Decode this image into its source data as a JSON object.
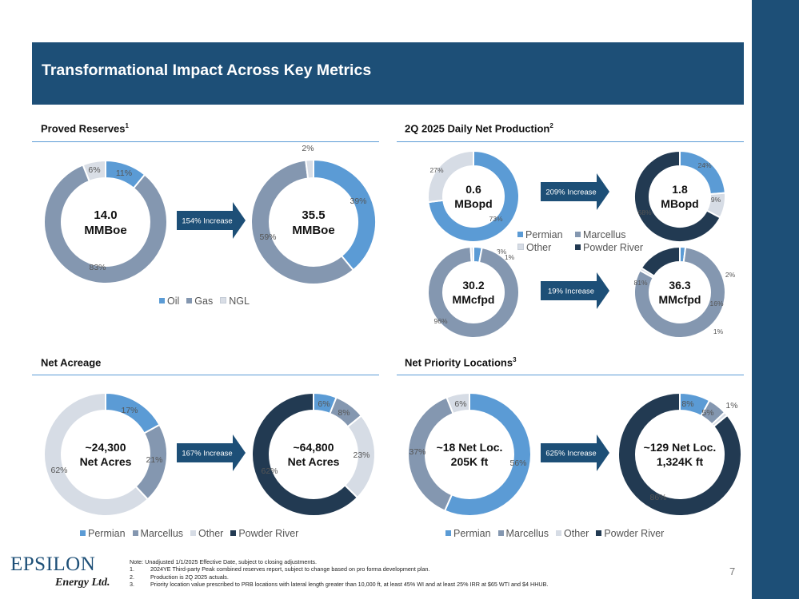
{
  "page": {
    "title": "Transformational Impact Across Key Metrics",
    "page_number": "7",
    "logo": {
      "word": "EPSILON",
      "sub": "Energy Ltd."
    }
  },
  "colors": {
    "banner": "#1d4f77",
    "oil": "#5b9bd5",
    "gas": "#8497b0",
    "ngl": "#d9dee6",
    "permian": "#5b9bd5",
    "marcellus": "#8497b0",
    "other": "#d6dce5",
    "powder_river": "#223a52",
    "arrow": "#1d4f77"
  },
  "sections": {
    "reserves": {
      "title": "Proved Reserves",
      "sup": "1"
    },
    "production": {
      "title": "2Q 2025 Daily Net Production",
      "sup": "2"
    },
    "acreage": {
      "title": "Net Acreage",
      "sup": ""
    },
    "locations": {
      "title": "Net Priority Locations",
      "sup": "3"
    }
  },
  "legends": {
    "reserves": [
      "Oil",
      "Gas",
      "NGL"
    ],
    "basins": [
      "Permian",
      "Marcellus",
      "Other",
      "Powder River"
    ]
  },
  "arrows": {
    "reserves": "154% Increase",
    "oil_production": "209% Increase",
    "gas_production": "19% Increase",
    "acreage": "167% Increase",
    "locations": "625% Increase"
  },
  "chart_data": [
    {
      "id": "reserves_before",
      "type": "pie",
      "center_label": [
        "14.0",
        "MMBoe"
      ],
      "series": [
        {
          "name": "Oil",
          "value": 11
        },
        {
          "name": "Gas",
          "value": 83
        },
        {
          "name": "NGL",
          "value": 6
        }
      ]
    },
    {
      "id": "reserves_after",
      "type": "pie",
      "center_label": [
        "35.5",
        "MMBoe"
      ],
      "series": [
        {
          "name": "Oil",
          "value": 39
        },
        {
          "name": "Gas",
          "value": 59
        },
        {
          "name": "NGL",
          "value": 2
        }
      ]
    },
    {
      "id": "oil_before",
      "type": "pie",
      "center_label": [
        "0.6",
        "MBopd"
      ],
      "series": [
        {
          "name": "Permian",
          "value": 73
        },
        {
          "name": "Other",
          "value": 27
        }
      ]
    },
    {
      "id": "oil_after",
      "type": "pie",
      "center_label": [
        "1.8",
        "MBopd"
      ],
      "series": [
        {
          "name": "Permian",
          "value": 24
        },
        {
          "name": "Other",
          "value": 9
        },
        {
          "name": "Powder River",
          "value": 68
        }
      ]
    },
    {
      "id": "gas_before",
      "type": "pie",
      "center_label": [
        "30.2",
        "MMcfpd"
      ],
      "series": [
        {
          "name": "Permian",
          "value": 3
        },
        {
          "name": "Marcellus",
          "value": 96
        },
        {
          "name": "Other",
          "value": 1
        }
      ]
    },
    {
      "id": "gas_after",
      "type": "pie",
      "center_label": [
        "36.3",
        "MMcfpd"
      ],
      "series": [
        {
          "name": "Permian",
          "value": 2
        },
        {
          "name": "Marcellus",
          "value": 81
        },
        {
          "name": "Other",
          "value": 1
        },
        {
          "name": "Powder River",
          "value": 16
        }
      ]
    },
    {
      "id": "acreage_before",
      "type": "pie",
      "center_label": [
        "~24,300",
        "Net Acres"
      ],
      "series": [
        {
          "name": "Permian",
          "value": 17
        },
        {
          "name": "Marcellus",
          "value": 21
        },
        {
          "name": "Other",
          "value": 62
        }
      ]
    },
    {
      "id": "acreage_after",
      "type": "pie",
      "center_label": [
        "~64,800",
        "Net Acres"
      ],
      "series": [
        {
          "name": "Permian",
          "value": 6
        },
        {
          "name": "Marcellus",
          "value": 8
        },
        {
          "name": "Other",
          "value": 23
        },
        {
          "name": "Powder River",
          "value": 62
        }
      ]
    },
    {
      "id": "locations_before",
      "type": "pie",
      "center_label": [
        "~18 Net Loc.",
        "205K ft"
      ],
      "series": [
        {
          "name": "Permian",
          "value": 56
        },
        {
          "name": "Marcellus",
          "value": 37
        },
        {
          "name": "Other",
          "value": 6
        }
      ]
    },
    {
      "id": "locations_after",
      "type": "pie",
      "center_label": [
        "~129 Net Loc.",
        "1,324K ft"
      ],
      "series": [
        {
          "name": "Permian",
          "value": 8
        },
        {
          "name": "Marcellus",
          "value": 5
        },
        {
          "name": "Other",
          "value": 1
        },
        {
          "name": "Powder River",
          "value": 86
        }
      ]
    }
  ],
  "notes": {
    "intro": "Note: Unadjusted 1/1/2025 Effective Date, subject to closing adjustments.",
    "items": [
      {
        "num": "1.",
        "text": "2024YE Third-party Peak combined reserves report, subject to change based on pro forma development plan."
      },
      {
        "num": "2.",
        "text": "Production is 2Q 2025 actuals."
      },
      {
        "num": "3.",
        "text": "Priority location value prescribed to PRB locations with lateral length greater than 10,000 ft, at least 45% WI and at least 25% IRR at $65 WTI and $4 HHUB."
      }
    ]
  }
}
